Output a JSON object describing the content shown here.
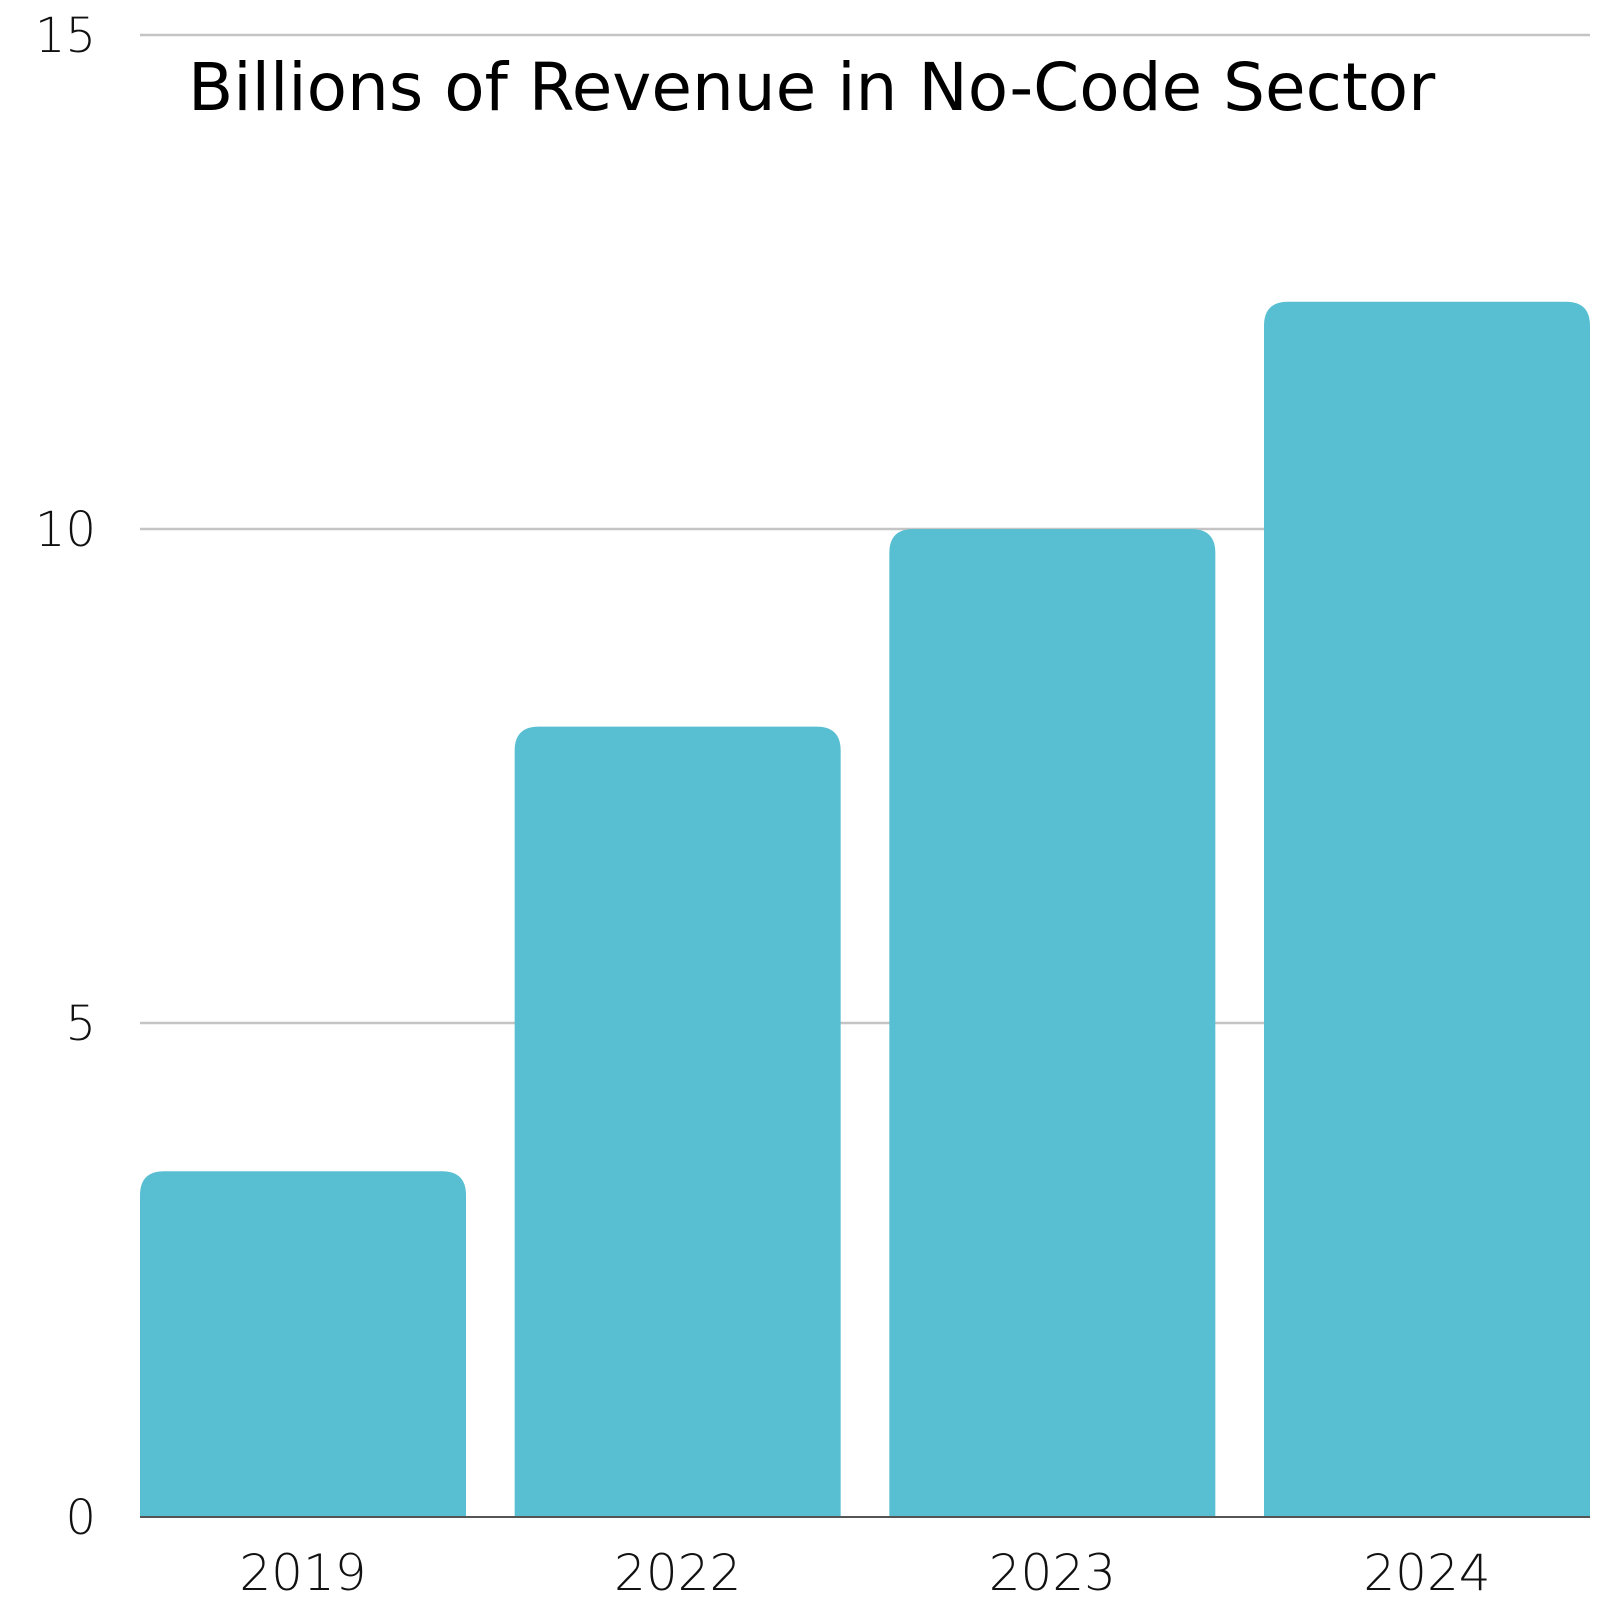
{
  "chart_data": {
    "type": "bar",
    "title": "Billions of Revenue in No-Code Sector",
    "xlabel": "",
    "ylabel": "",
    "categories": [
      "2019",
      "2022",
      "2023",
      "2024"
    ],
    "values": [
      3.5,
      8,
      10,
      12.3
    ],
    "ylim": [
      0,
      15
    ],
    "yticks": [
      "0",
      "5",
      "10",
      "15"
    ],
    "grid": true,
    "legend": "none",
    "bar_color": "#58BFD2",
    "grid_color": "#C4C4C4",
    "axis_color": "#555555"
  }
}
